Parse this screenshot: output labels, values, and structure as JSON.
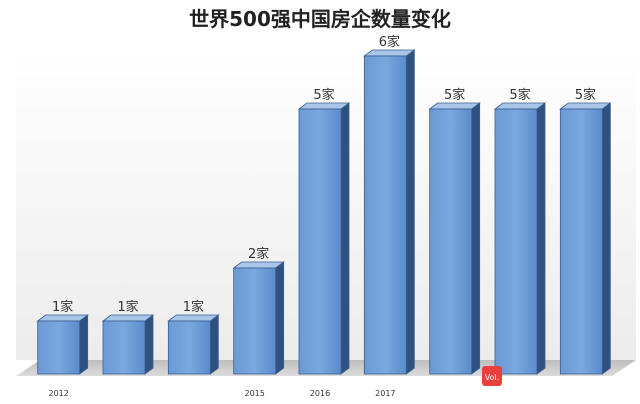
{
  "chart_data": {
    "type": "bar",
    "title": "世界500强中国房企数量变化",
    "categories": [
      "2012",
      "",
      "",
      "2015",
      "2016",
      "2017",
      "",
      "",
      ""
    ],
    "values": [
      1,
      1,
      1,
      2,
      5,
      6,
      5,
      5,
      5
    ],
    "data_labels": [
      "1家",
      "1家",
      "1家",
      "2家",
      "5家",
      "6家",
      "5家",
      "5家",
      "5家"
    ],
    "xlabel": "",
    "ylabel": "",
    "ylim": [
      0,
      6
    ],
    "grid": false,
    "legend": "none",
    "style": "3d-column"
  },
  "colors": {
    "bar_front": "#5b8fd1",
    "bar_front_light": "#7aa7dd",
    "bar_side": "#2f5180",
    "bar_top": "#a9c6ea",
    "bar_outline": "#3a5f8e",
    "floor": "#c8c8c8",
    "wall": "#f4f4f4",
    "title": "#222222",
    "label": "#333333"
  },
  "watermark": {
    "badge_text": "Vol."
  }
}
